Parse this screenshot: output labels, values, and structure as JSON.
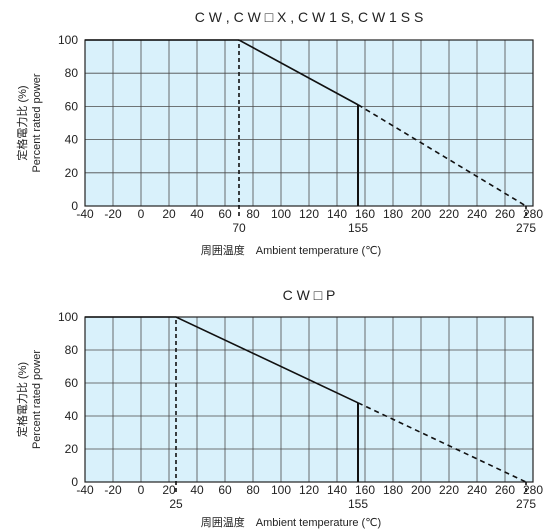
{
  "chart_data": [
    {
      "type": "line",
      "title": "C W , C W □ X , C W 1 S, C W 1 S S",
      "xlabel": "周囲温度　Ambient temperature (℃)",
      "ylabel_jp": "定格電力比 (%)",
      "ylabel_en": "Percent rated power",
      "xlim": [
        -40,
        280
      ],
      "ylim": [
        0,
        100
      ],
      "x_ticks": [
        -40,
        -20,
        0,
        20,
        40,
        60,
        80,
        100,
        120,
        140,
        160,
        180,
        200,
        220,
        240,
        260,
        280
      ],
      "y_ticks": [
        0,
        20,
        40,
        60,
        80,
        100
      ],
      "grid": true,
      "series": [
        {
          "style": "solid",
          "x": [
            -40,
            70,
            155
          ],
          "y": [
            100,
            100,
            61
          ]
        },
        {
          "style": "dashed",
          "x": [
            155,
            275
          ],
          "y": [
            61,
            0
          ]
        }
      ],
      "guides": [
        {
          "style": "dashed",
          "x": 70,
          "y_top": 100
        },
        {
          "style": "solid",
          "x": 155,
          "y_top": 61
        },
        {
          "style": "dashed",
          "x": 275,
          "y_top": 0
        }
      ],
      "annotations": [
        "70",
        "155",
        "275"
      ]
    },
    {
      "type": "line",
      "title": "C W □ P",
      "xlabel": "周囲温度　Ambient temperature (℃)",
      "ylabel_jp": "定格電力比 (%)",
      "ylabel_en": "Percent rated power",
      "xlim": [
        -40,
        280
      ],
      "ylim": [
        0,
        100
      ],
      "x_ticks": [
        -40,
        -20,
        0,
        20,
        40,
        60,
        80,
        100,
        120,
        140,
        160,
        180,
        200,
        220,
        240,
        260,
        280
      ],
      "y_ticks": [
        0,
        20,
        40,
        60,
        80,
        100
      ],
      "grid": true,
      "series": [
        {
          "style": "solid",
          "x": [
            -40,
            25,
            155
          ],
          "y": [
            100,
            100,
            48
          ]
        },
        {
          "style": "dashed",
          "x": [
            155,
            275
          ],
          "y": [
            48,
            0
          ]
        }
      ],
      "guides": [
        {
          "style": "dashed",
          "x": 25,
          "y_top": 100
        },
        {
          "style": "solid",
          "x": 155,
          "y_top": 48
        },
        {
          "style": "dashed",
          "x": 275,
          "y_top": 0
        }
      ],
      "annotations": [
        "25",
        "155",
        "275"
      ]
    }
  ],
  "colors": {
    "plot_bg": "#d9f1fb",
    "grid": "#4a4a4a",
    "line": "#111111"
  }
}
